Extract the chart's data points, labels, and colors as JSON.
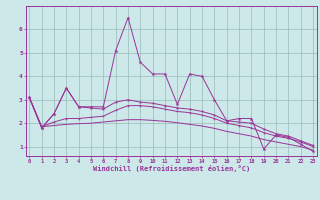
{
  "xlabel": "Windchill (Refroidissement éolien,°C)",
  "background_color": "#cce8e8",
  "line_color": "#993399",
  "grid_color": "#99bbbb",
  "x": [
    0,
    1,
    2,
    3,
    4,
    5,
    6,
    7,
    8,
    9,
    10,
    11,
    12,
    13,
    14,
    15,
    16,
    17,
    18,
    19,
    20,
    21,
    22,
    23
  ],
  "y_jagged": [
    3.1,
    1.8,
    2.4,
    3.5,
    2.7,
    2.7,
    2.7,
    5.1,
    6.5,
    4.6,
    4.1,
    4.1,
    2.8,
    4.1,
    4.0,
    3.0,
    2.1,
    2.2,
    2.2,
    0.9,
    1.5,
    1.4,
    1.1,
    0.8
  ],
  "y_upper": [
    3.1,
    1.8,
    2.4,
    3.5,
    2.7,
    2.65,
    2.6,
    2.9,
    3.0,
    2.9,
    2.85,
    2.75,
    2.65,
    2.6,
    2.5,
    2.35,
    2.1,
    2.05,
    2.0,
    1.75,
    1.55,
    1.45,
    1.25,
    1.05
  ],
  "y_mid": [
    3.1,
    1.85,
    2.05,
    2.2,
    2.2,
    2.25,
    2.3,
    2.55,
    2.75,
    2.75,
    2.7,
    2.6,
    2.5,
    2.45,
    2.35,
    2.2,
    2.0,
    1.9,
    1.8,
    1.6,
    1.45,
    1.35,
    1.2,
    1.0
  ],
  "y_lower": [
    3.1,
    1.85,
    1.9,
    1.95,
    1.98,
    2.0,
    2.05,
    2.1,
    2.15,
    2.15,
    2.12,
    2.08,
    2.02,
    1.95,
    1.88,
    1.78,
    1.65,
    1.55,
    1.45,
    1.3,
    1.2,
    1.1,
    1.0,
    0.85
  ],
  "ylim": [
    0.6,
    7.0
  ],
  "xlim": [
    -0.3,
    23.3
  ],
  "yticks": [
    1,
    2,
    3,
    4,
    5,
    6
  ],
  "xticks": [
    0,
    1,
    2,
    3,
    4,
    5,
    6,
    7,
    8,
    9,
    10,
    11,
    12,
    13,
    14,
    15,
    16,
    17,
    18,
    19,
    20,
    21,
    22,
    23
  ]
}
